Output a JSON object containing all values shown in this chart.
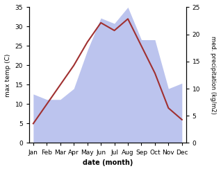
{
  "months": [
    "Jan",
    "Feb",
    "Mar",
    "Apr",
    "May",
    "Jun",
    "Jul",
    "Aug",
    "Sep",
    "Oct",
    "Nov",
    "Dec"
  ],
  "month_positions": [
    0,
    1,
    2,
    3,
    4,
    5,
    6,
    7,
    8,
    9,
    10,
    11
  ],
  "temperature": [
    5,
    10,
    15,
    20,
    26,
    31,
    29,
    32,
    25,
    18,
    9,
    6
  ],
  "precipitation": [
    9,
    8,
    8,
    10,
    17,
    23,
    22,
    25,
    19,
    19,
    10,
    11
  ],
  "temp_color": "#a03030",
  "precip_color_fill": "#bcc4ee",
  "temp_ylim": [
    0,
    35
  ],
  "precip_ylim": [
    0,
    25
  ],
  "temp_yticks": [
    0,
    5,
    10,
    15,
    20,
    25,
    30,
    35
  ],
  "precip_yticks": [
    0,
    5,
    10,
    15,
    20,
    25
  ],
  "xlabel": "date (month)",
  "ylabel_left": "max temp (C)",
  "ylabel_right": "med. precipitation (kg/m2)",
  "fig_width": 3.18,
  "fig_height": 2.47,
  "dpi": 100
}
